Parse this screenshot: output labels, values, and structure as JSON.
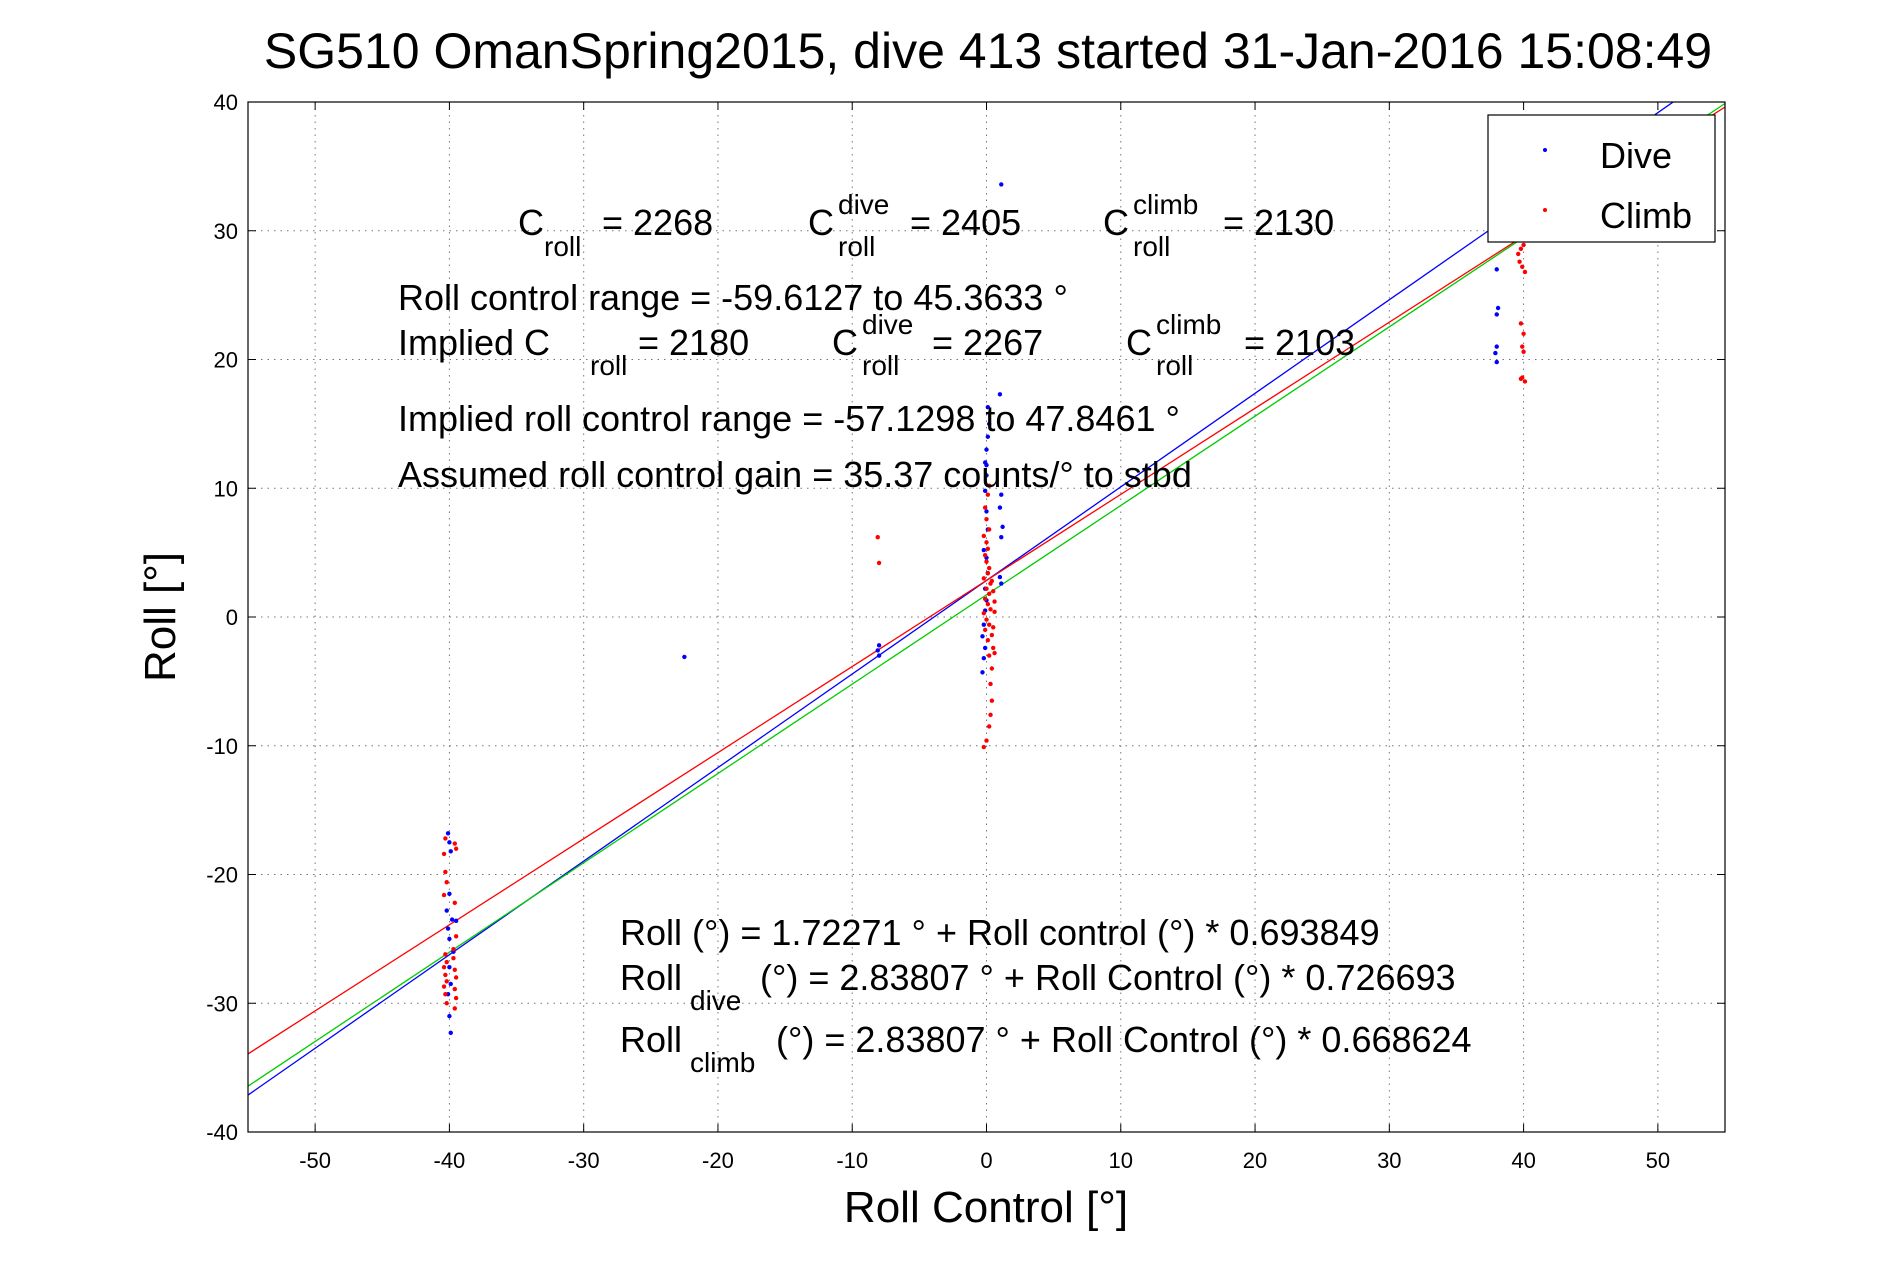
{
  "chart_data": {
    "type": "scatter",
    "title": "SG510 OmanSpring2015, dive 413 started 31-Jan-2016 15:08:49",
    "xlabel": "Roll Control [°]",
    "ylabel": "Roll [°]",
    "xlim": [
      -55,
      55
    ],
    "ylim": [
      -40,
      40
    ],
    "xticks": [
      -50,
      -40,
      -30,
      -20,
      -10,
      0,
      10,
      20,
      30,
      40,
      50
    ],
    "yticks": [
      -40,
      -30,
      -20,
      -10,
      0,
      10,
      20,
      30,
      40
    ],
    "grid": true,
    "legend_position": "top-right",
    "legend": [
      {
        "label": "Dive",
        "color": "#0000ff"
      },
      {
        "label": "Climb",
        "color": "#ff0000"
      }
    ],
    "series": [
      {
        "name": "Dive",
        "color": "#0000ff",
        "points": [
          [
            -40.1,
            -16.8
          ],
          [
            -40.0,
            -17.5
          ],
          [
            -39.9,
            -18.2
          ],
          [
            -40.0,
            -21.5
          ],
          [
            -40.2,
            -22.8
          ],
          [
            -39.8,
            -23.5
          ],
          [
            -40.1,
            -24.2
          ],
          [
            -39.5,
            -23.6
          ],
          [
            -40.0,
            -25.0
          ],
          [
            -39.7,
            -26.0
          ],
          [
            -40.0,
            -27.2
          ],
          [
            -39.9,
            -28.5
          ],
          [
            -40.1,
            -29.3
          ],
          [
            -40.0,
            -31.0
          ],
          [
            -39.9,
            -32.3
          ],
          [
            -22.5,
            -3.1
          ],
          [
            -8.0,
            -2.2
          ],
          [
            -8.1,
            -2.6
          ],
          [
            -8.0,
            -3.0
          ],
          [
            -0.3,
            -4.3
          ],
          [
            -0.2,
            -3.2
          ],
          [
            -0.1,
            -2.4
          ],
          [
            -0.3,
            -1.5
          ],
          [
            -0.2,
            -0.6
          ],
          [
            -0.1,
            0.5
          ],
          [
            0.0,
            1.3
          ],
          [
            -0.1,
            2.2
          ],
          [
            0.1,
            3.4
          ],
          [
            0.0,
            4.6
          ],
          [
            -0.2,
            5.2
          ],
          [
            0.1,
            6.8
          ],
          [
            0.0,
            8.2
          ],
          [
            -0.1,
            9.8
          ],
          [
            0.0,
            11.0
          ],
          [
            -0.1,
            12.0
          ],
          [
            0.0,
            13.0
          ],
          [
            0.1,
            14.0
          ],
          [
            0.2,
            15.0
          ],
          [
            0.1,
            16.3
          ],
          [
            0.0,
            11.8
          ],
          [
            1.1,
            33.6
          ],
          [
            1.0,
            17.3
          ],
          [
            1.1,
            9.5
          ],
          [
            1.0,
            8.5
          ],
          [
            1.2,
            7.0
          ],
          [
            1.1,
            6.2
          ],
          [
            1.0,
            3.1
          ],
          [
            1.1,
            2.6
          ],
          [
            38.0,
            27.0
          ],
          [
            38.1,
            24.0
          ],
          [
            38.0,
            23.5
          ],
          [
            38.0,
            21.0
          ],
          [
            37.9,
            20.5
          ],
          [
            38.0,
            19.8
          ]
        ]
      },
      {
        "name": "Climb",
        "color": "#ff0000",
        "points": [
          [
            -40.3,
            -17.2
          ],
          [
            -40.4,
            -18.4
          ],
          [
            -40.3,
            -19.8
          ],
          [
            -40.2,
            -20.6
          ],
          [
            -40.4,
            -21.6
          ],
          [
            -39.6,
            -17.6
          ],
          [
            -39.5,
            -18.0
          ],
          [
            -39.6,
            -22.2
          ],
          [
            -39.5,
            -24.8
          ],
          [
            -39.7,
            -25.8
          ],
          [
            -40.3,
            -26.2
          ],
          [
            -40.2,
            -26.8
          ],
          [
            -40.4,
            -27.2
          ],
          [
            -39.6,
            -27.4
          ],
          [
            -40.3,
            -27.8
          ],
          [
            -39.5,
            -28.0
          ],
          [
            -40.2,
            -28.3
          ],
          [
            -40.4,
            -28.7
          ],
          [
            -39.6,
            -28.9
          ],
          [
            -40.3,
            -29.3
          ],
          [
            -39.5,
            -29.6
          ],
          [
            -40.2,
            -30.0
          ],
          [
            -39.7,
            -26.5
          ],
          [
            -39.6,
            -30.4
          ],
          [
            -8.1,
            6.2
          ],
          [
            -8.0,
            4.2
          ],
          [
            -0.2,
            -10.1
          ],
          [
            0.0,
            -9.6
          ],
          [
            0.2,
            -8.5
          ],
          [
            0.3,
            -7.6
          ],
          [
            0.4,
            -6.5
          ],
          [
            0.3,
            -5.2
          ],
          [
            0.4,
            -4.0
          ],
          [
            0.2,
            -3.0
          ],
          [
            0.5,
            -2.4
          ],
          [
            0.1,
            -1.8
          ],
          [
            -0.1,
            -1.0
          ],
          [
            0.2,
            -0.6
          ],
          [
            0.0,
            -0.2
          ],
          [
            -0.2,
            0.3
          ],
          [
            0.3,
            0.6
          ],
          [
            0.1,
            1.0
          ],
          [
            -0.1,
            1.4
          ],
          [
            0.2,
            1.8
          ],
          [
            0.0,
            2.2
          ],
          [
            0.3,
            2.6
          ],
          [
            -0.2,
            3.0
          ],
          [
            0.1,
            3.4
          ],
          [
            0.2,
            3.8
          ],
          [
            0.0,
            4.3
          ],
          [
            -0.1,
            4.8
          ],
          [
            0.1,
            5.3
          ],
          [
            0.0,
            5.8
          ],
          [
            -0.2,
            6.3
          ],
          [
            0.2,
            6.8
          ],
          [
            0.0,
            7.6
          ],
          [
            -0.1,
            8.5
          ],
          [
            0.1,
            9.5
          ],
          [
            0.2,
            10.2
          ],
          [
            0.5,
            -0.8
          ],
          [
            0.6,
            0.4
          ],
          [
            0.4,
            -1.4
          ],
          [
            0.6,
            1.2
          ],
          [
            0.5,
            2.0
          ],
          [
            0.4,
            2.8
          ],
          [
            0.6,
            -2.8
          ],
          [
            39.6,
            28.2
          ],
          [
            39.8,
            28.6
          ],
          [
            40.0,
            28.9
          ],
          [
            39.7,
            27.6
          ],
          [
            39.9,
            27.2
          ],
          [
            40.1,
            26.8
          ],
          [
            39.8,
            22.8
          ],
          [
            40.0,
            22.0
          ],
          [
            39.9,
            21.0
          ],
          [
            40.0,
            20.6
          ],
          [
            39.9,
            18.6
          ],
          [
            40.1,
            18.3
          ],
          [
            39.8,
            18.5
          ]
        ]
      }
    ],
    "fit_lines": [
      {
        "color": "#0000ff",
        "intercept": 2.83807,
        "slope": 0.726693
      },
      {
        "color": "#00cc00",
        "intercept": 1.72271,
        "slope": 0.693849
      },
      {
        "color": "#ff0000",
        "intercept": 2.83807,
        "slope": 0.668624
      }
    ],
    "annotations": {
      "croll_line": {
        "c1": "C",
        "c1_sub": "roll",
        "c1_val": "= 2268",
        "c2": "C",
        "c2_sup": "dive",
        "c2_sub": "roll",
        "c2_val": "= 2405",
        "c3": "C",
        "c3_sup": "climb",
        "c3_sub": "roll",
        "c3_val": "= 2130"
      },
      "range_line": "Roll control range = -59.6127 to 45.3633 °",
      "implied_line": {
        "prefix": "Implied C",
        "c1_sub": "roll",
        "c1_val": "= 2180",
        "c2": "C",
        "c2_sup": "dive",
        "c2_sub": "roll",
        "c2_val": "= 2267",
        "c3": "C",
        "c3_sup": "climb",
        "c3_sub": "roll",
        "c3_val": "= 2103"
      },
      "implied_range": "Implied roll control range = -57.1298 to 47.8461 °",
      "gain": "Assumed roll control gain = 35.37 counts/° to stbd",
      "eq1": "Roll (°) = 1.72271 ° + Roll control (°) * 0.693849",
      "eq2": {
        "prefix": "Roll",
        "sub": "dive",
        "rest": "(°) = 2.83807 ° + Roll Control (°) * 0.726693"
      },
      "eq3": {
        "prefix": "Roll",
        "sub": "climb",
        "rest": "(°) = 2.83807 ° + Roll Control (°) * 0.668624"
      }
    }
  }
}
